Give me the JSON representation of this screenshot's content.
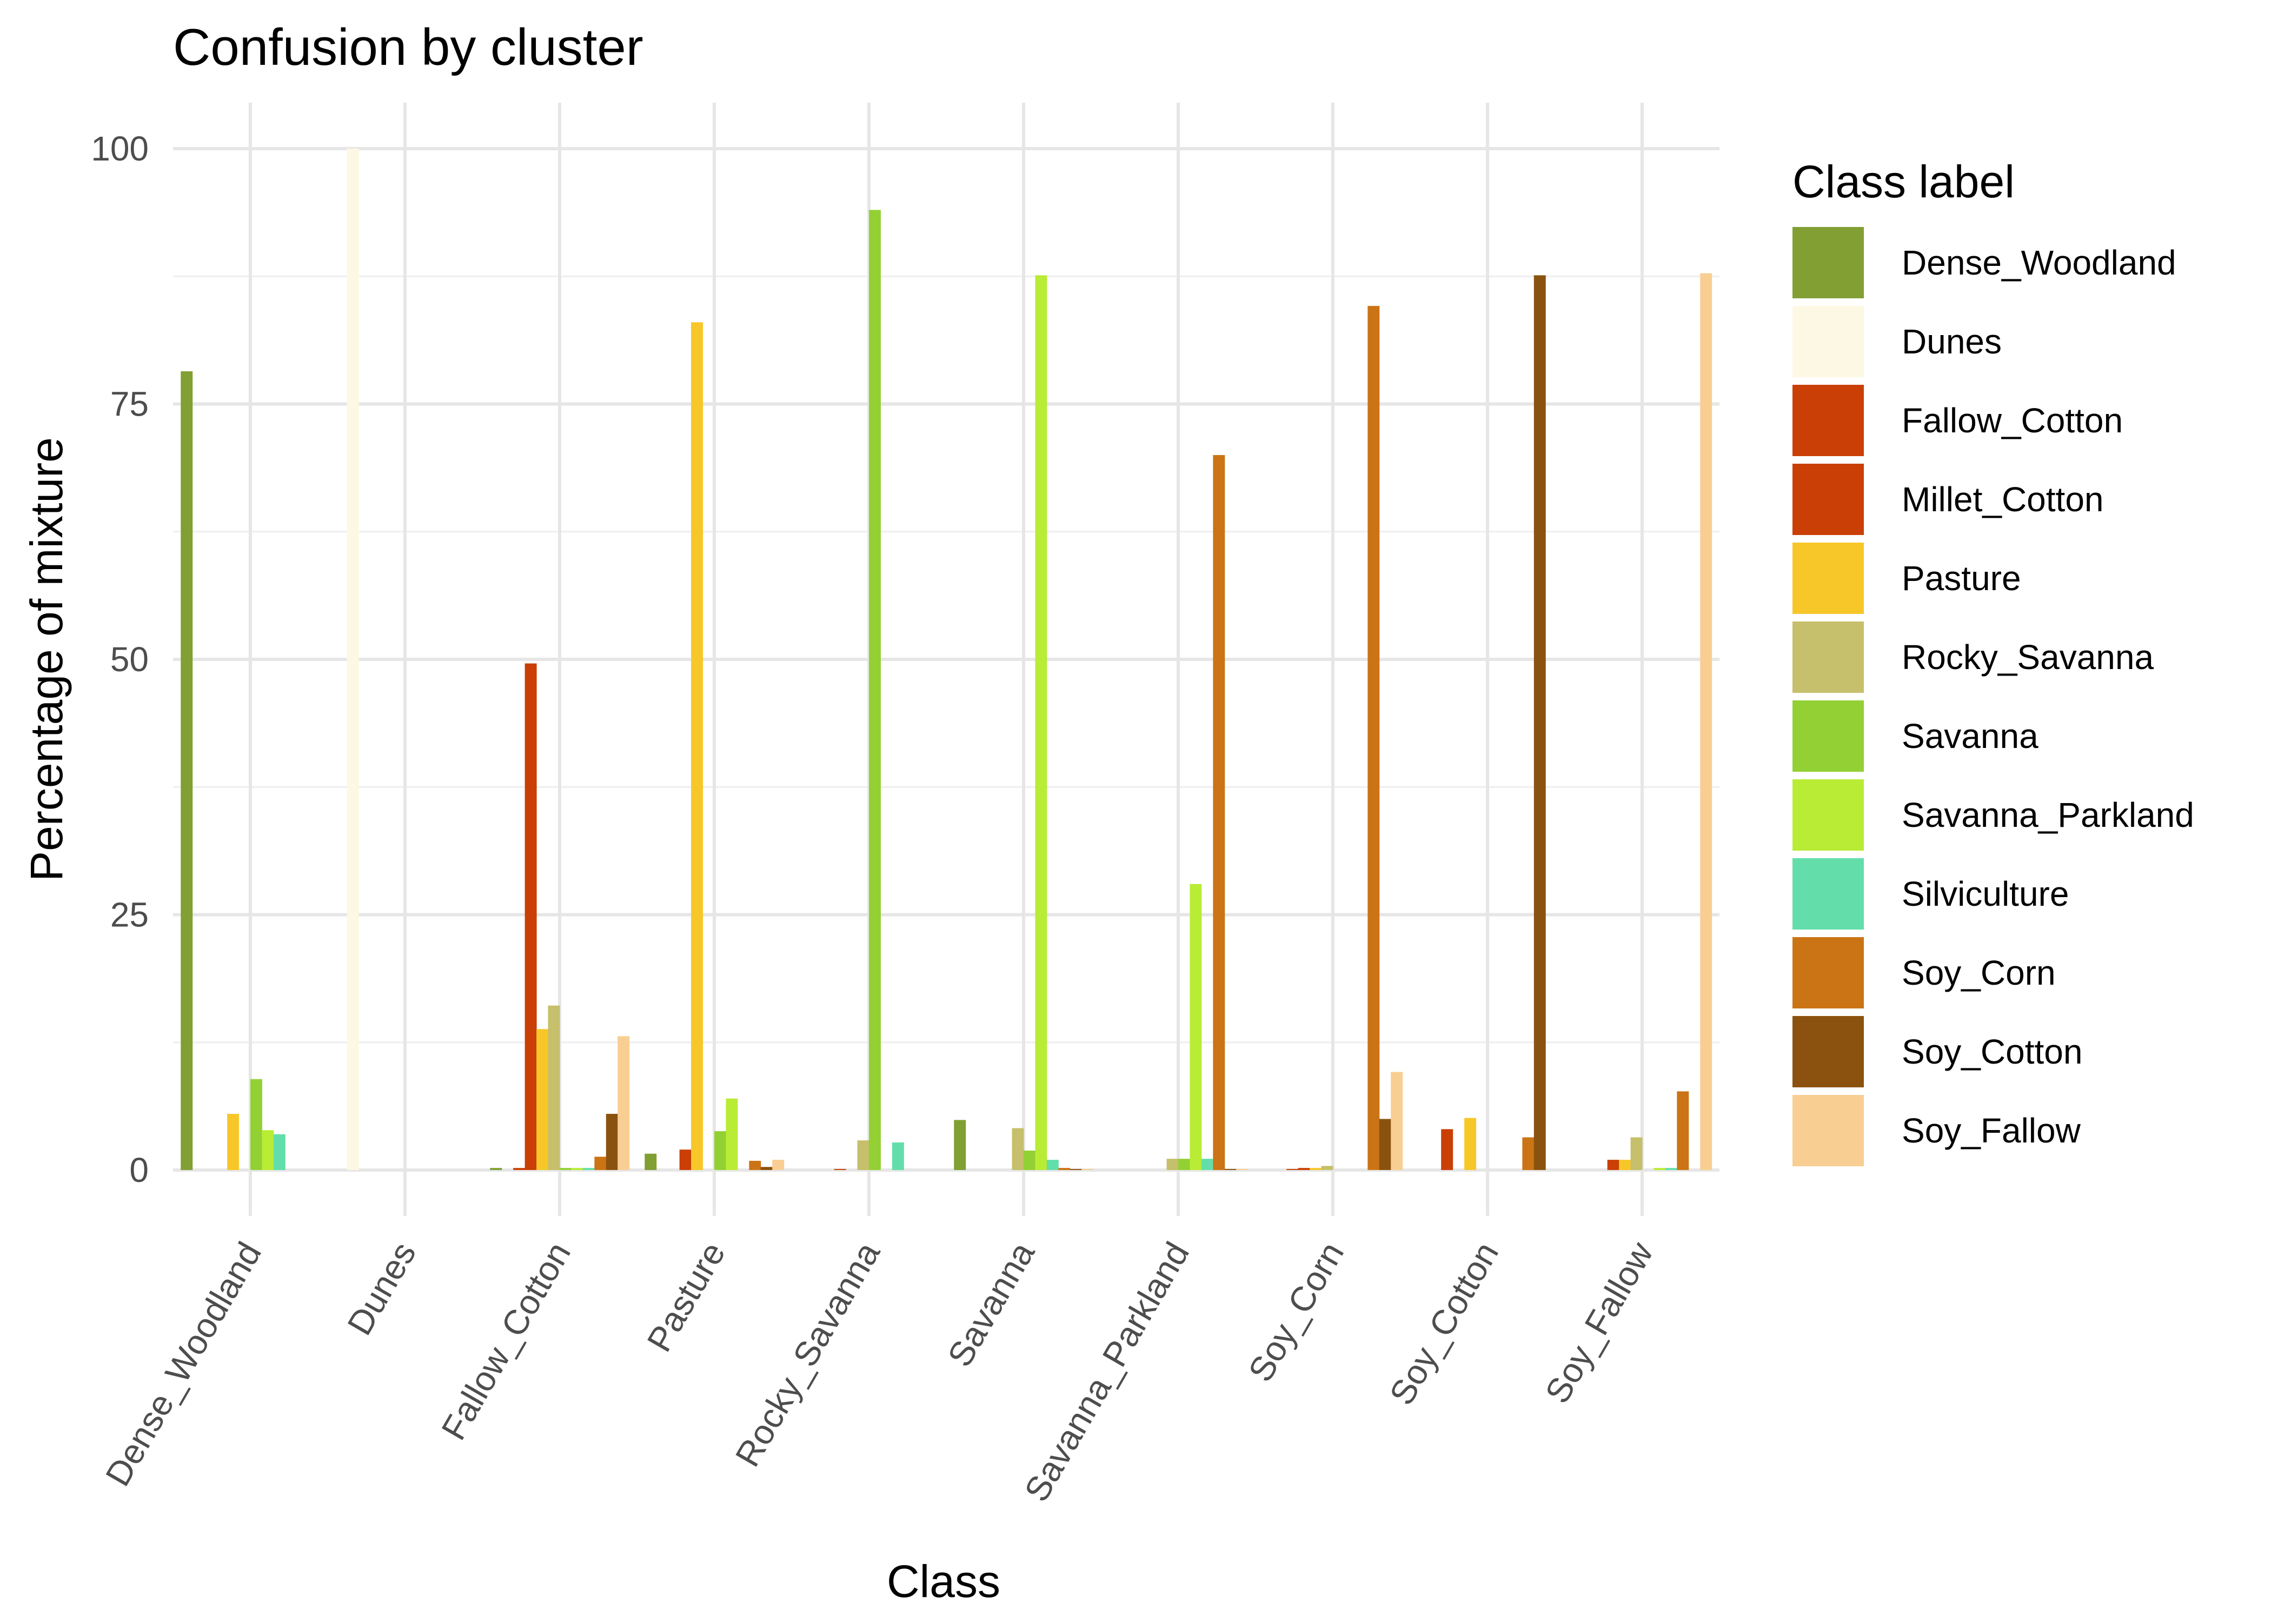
{
  "chart_data": {
    "type": "bar",
    "title": "Confusion by cluster",
    "xlabel": "Class",
    "ylabel": "Percentage of mixture",
    "ylim": [
      -4.5,
      104.5
    ],
    "yticks": [
      0,
      25,
      50,
      75,
      100
    ],
    "grid": true,
    "legend": {
      "title": "Class label",
      "position": "right"
    },
    "categories": [
      "Dense_Woodland",
      "Dunes",
      "Fallow_Cotton",
      "Pasture",
      "Rocky_Savanna",
      "Savanna",
      "Savanna_Parkland",
      "Soy_Corn",
      "Soy_Cotton",
      "Soy_Fallow"
    ],
    "series": [
      {
        "name": "Dense_Woodland",
        "color": "#819F33",
        "values": [
          78.2,
          0,
          0.2,
          1.6,
          0,
          4.9,
          0,
          0,
          0,
          0
        ]
      },
      {
        "name": "Dunes",
        "color": "#FDF8E4",
        "values": [
          0,
          100,
          0,
          0,
          0,
          0,
          0,
          0,
          0,
          0
        ]
      },
      {
        "name": "Fallow_Cotton",
        "color": "#C93F05",
        "values": [
          0,
          0,
          0.2,
          0,
          0,
          0,
          0,
          0.1,
          4.0,
          0
        ]
      },
      {
        "name": "Millet_Cotton",
        "color": "#C93F05",
        "values": [
          0,
          0,
          49.6,
          2.0,
          0.1,
          0,
          0,
          0.2,
          0,
          1.0
        ]
      },
      {
        "name": "Pasture",
        "color": "#F7C72A",
        "values": [
          5.5,
          0,
          13.8,
          83.0,
          0,
          0,
          0,
          0.2,
          5.1,
          1.0
        ]
      },
      {
        "name": "Rocky_Savanna",
        "color": "#C6BF6B",
        "values": [
          0,
          0,
          16.1,
          0,
          2.9,
          4.1,
          1.1,
          0.4,
          0,
          3.2
        ]
      },
      {
        "name": "Savanna",
        "color": "#93D034",
        "values": [
          8.9,
          0,
          0.2,
          3.8,
          94.0,
          1.9,
          1.1,
          0,
          0,
          0
        ]
      },
      {
        "name": "Savanna_Parkland",
        "color": "#B9EC35",
        "values": [
          3.9,
          0,
          0.2,
          7.0,
          0,
          87.6,
          28.0,
          0,
          0,
          0.2
        ]
      },
      {
        "name": "Silviculture",
        "color": "#63DEAA",
        "values": [
          3.5,
          0,
          0.2,
          0,
          2.7,
          1.0,
          1.1,
          0,
          0,
          0.2
        ]
      },
      {
        "name": "Soy_Corn",
        "color": "#CB7415",
        "values": [
          0,
          0,
          1.3,
          0.9,
          0,
          0.2,
          70.0,
          84.6,
          3.2,
          7.7
        ]
      },
      {
        "name": "Soy_Cotton",
        "color": "#8B520F",
        "values": [
          0,
          0,
          5.5,
          0.3,
          0,
          0.1,
          0.1,
          5.0,
          87.6,
          0
        ]
      },
      {
        "name": "Soy_Fallow",
        "color": "#F8CE93",
        "values": [
          0,
          0,
          13.1,
          1.0,
          0,
          0.1,
          0.1,
          9.6,
          0,
          87.8
        ]
      }
    ]
  }
}
